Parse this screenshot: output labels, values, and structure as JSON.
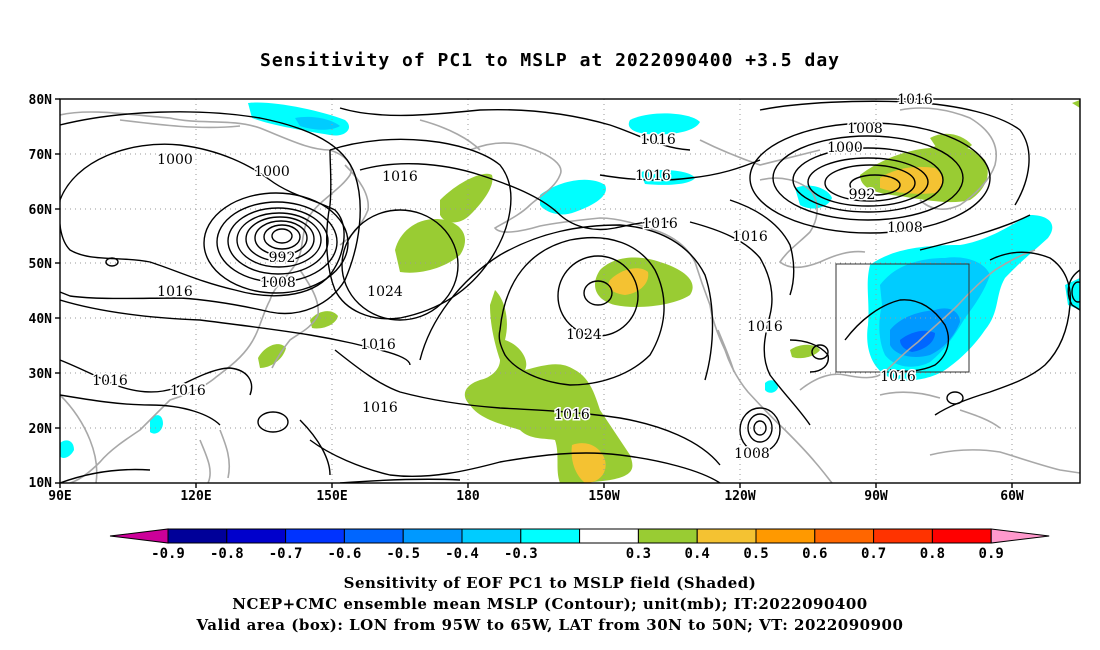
{
  "title": "Sensitivity of PC1 to MSLP at 2022090400 +3.5 day",
  "map": {
    "lat_labels": [
      "80N",
      "70N",
      "60N",
      "50N",
      "40N",
      "30N",
      "20N",
      "10N"
    ],
    "lon_labels": [
      "90E",
      "120E",
      "150E",
      "180",
      "150W",
      "120W",
      "90W",
      "60W"
    ],
    "contour_labels": [
      "1016",
      "1000",
      "1000",
      "992",
      "1008",
      "1016",
      "1016",
      "1016",
      "1016",
      "1024",
      "1016",
      "1016",
      "1016",
      "1016",
      "1016",
      "1024",
      "1016",
      "1016",
      "1008",
      "1016",
      "1008",
      "1000",
      "992",
      "1008",
      "1016",
      "1016",
      "1016"
    ],
    "box": {
      "label": "Valid area (box)",
      "lon_from": "95W",
      "lon_to": "65W",
      "lat_from": "30N",
      "lat_to": "50N"
    },
    "colors": {
      "land": "#a8a8a8",
      "contour": "#000000",
      "pos_03": "#99cc33",
      "pos_04": "#f4c232",
      "neg_03": "#00ffff",
      "neg_04": "#00ccff",
      "neg_05": "#0099ff",
      "neg_06": "#0066ff"
    }
  },
  "colorbar": {
    "labels": [
      "-0.9",
      "-0.8",
      "-0.7",
      "-0.6",
      "-0.5",
      "-0.4",
      "-0.3",
      "0.3",
      "0.4",
      "0.5",
      "0.6",
      "0.7",
      "0.8",
      "0.9"
    ],
    "colors": [
      "#000099",
      "#0000cc",
      "#0033ff",
      "#0066ff",
      "#0099ff",
      "#00ccff",
      "#00ffff",
      "#ffffff",
      "#99cc33",
      "#f4c232",
      "#ff9900",
      "#ff6600",
      "#ff3300",
      "#ff0000"
    ],
    "low_arrow_color": "#cc0099",
    "high_arrow_color": "#ff99cc"
  },
  "captions": [
    "Sensitivity of EOF PC1 to MSLP field (Shaded)",
    "NCEP+CMC ensemble mean MSLP (Contour); unit(mb); IT:2022090400",
    "Valid area (box): LON from 95W to 65W, LAT from 30N to 50N; VT: 2022090900"
  ]
}
